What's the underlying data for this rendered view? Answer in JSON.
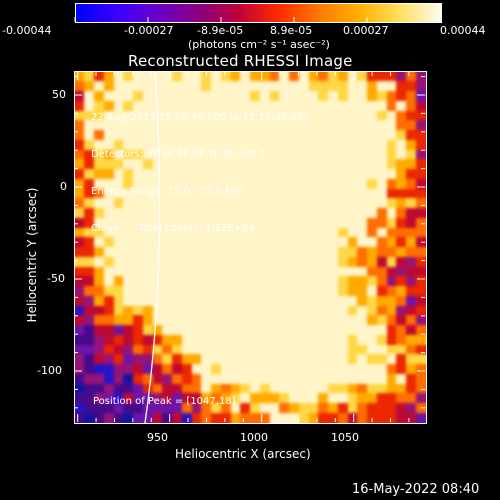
{
  "colorbar": {
    "tick_labels": [
      "-0.00044",
      "-0.00027",
      "-8.9e-05",
      "8.9e-05",
      "0.00027",
      "0.00044"
    ],
    "units_label": "(photons cm⁻² s⁻¹ asec⁻²)",
    "stops": [
      "#0000ff",
      "#3a00ff",
      "#6a00cc",
      "#8a0080",
      "#c0003a",
      "#ff2a00",
      "#ff7a00",
      "#ffb000",
      "#ffe060",
      "#fffcef"
    ]
  },
  "image": {
    "title": "Reconstructed RHESSI Image",
    "info_lines": [
      "22-Aug-2013 15:08:40.000 to 15:14:40.000",
      "Detectors: 3F 4F 5F 6F 7F 8F, Att 0",
      "Energy Range: 12.0 - 25.0 keV",
      "Clean      Total counts: 1.23E+04"
    ],
    "peak_label": "Position of Peak = [1047,18]",
    "x_axis": {
      "label": "Heliocentric X (arcsec)",
      "tick_labels": [
        "950",
        "1000",
        "1050"
      ]
    },
    "y_axis": {
      "label": "Heliocentric Y (arcsec)",
      "tick_labels": [
        "50",
        "0",
        "-50",
        "-100"
      ]
    }
  },
  "footer": {
    "timestamp": "16-May-2022 08:40"
  }
}
